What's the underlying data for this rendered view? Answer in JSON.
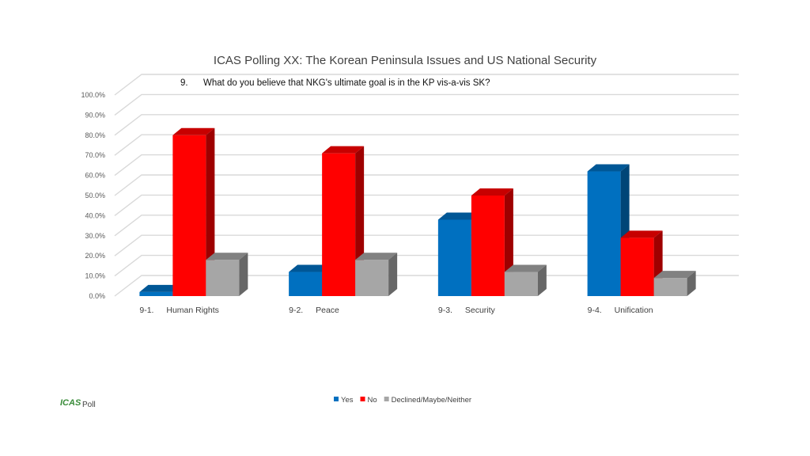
{
  "chart_data": {
    "type": "bar",
    "title": "ICAS Polling XX: The Korean Peninsula Issues and US National Security",
    "subtitle_number": "9.",
    "subtitle_text": "What do you believe that NKG's ultimate goal is in the KP vis-a-vis SK?",
    "categories": [
      {
        "number": "9-1.",
        "label": "Human Rights"
      },
      {
        "number": "9-2.",
        "label": "Peace"
      },
      {
        "number": "9-3.",
        "label": "Security"
      },
      {
        "number": "9-4.",
        "label": "Unification"
      }
    ],
    "y_ticks": [
      "0.0%",
      "10.0%",
      "20.0%",
      "30.0%",
      "40.0%",
      "50.0%",
      "60.0%",
      "70.0%",
      "80.0%",
      "90.0%",
      "100.0%"
    ],
    "ylim": [
      0,
      100
    ],
    "grid": true,
    "legend_position": "bottom",
    "series": [
      {
        "name": "Yes",
        "color": "#0070c0",
        "values": [
          2,
          12,
          38,
          62
        ]
      },
      {
        "name": "No",
        "color": "#ff0000",
        "values": [
          80,
          71,
          50,
          29
        ]
      },
      {
        "name": "Declined/Maybe/Neither",
        "color": "#a6a6a6",
        "values": [
          18,
          18,
          12,
          9
        ]
      }
    ]
  },
  "brand": {
    "logo_text": "ICAS",
    "suffix": "Poll"
  }
}
